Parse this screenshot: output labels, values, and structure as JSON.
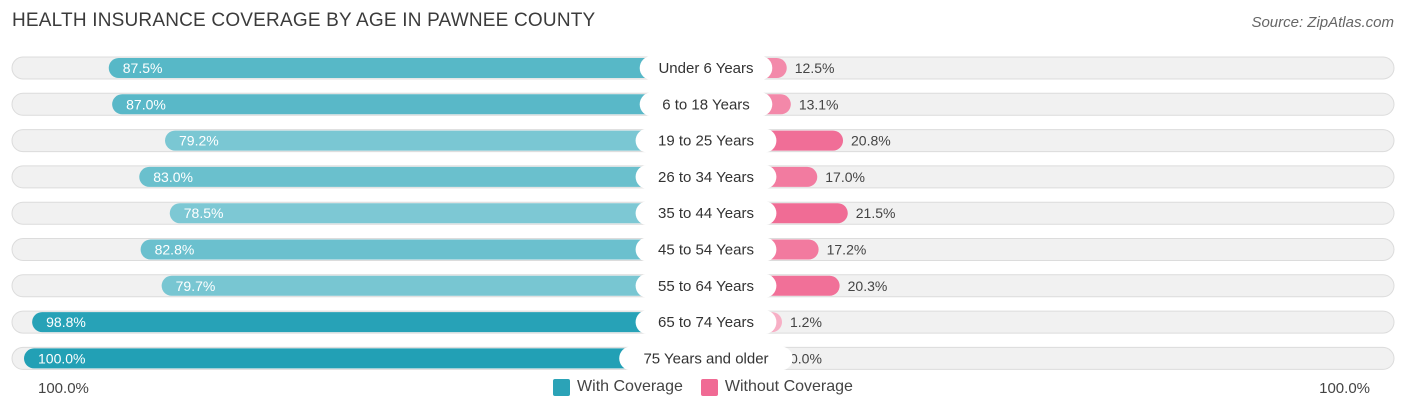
{
  "title": "HEALTH INSURANCE COVERAGE BY AGE IN PAWNEE COUNTY",
  "source": "Source: ZipAtlas.com",
  "axis": {
    "left_label": "100.0%",
    "right_label": "100.0%"
  },
  "legend": [
    {
      "label": "With Coverage",
      "color": "#2ba3b7"
    },
    {
      "label": "Without Coverage",
      "color": "#f06a94"
    }
  ],
  "chart_data": {
    "type": "bar",
    "orientation": "horizontal-diverging",
    "title": "HEALTH INSURANCE COVERAGE BY AGE IN PAWNEE COUNTY",
    "categories": [
      "Under 6 Years",
      "6 to 18 Years",
      "19 to 25 Years",
      "26 to 34 Years",
      "35 to 44 Years",
      "45 to 54 Years",
      "55 to 64 Years",
      "65 to 74 Years",
      "75 Years and older"
    ],
    "series": [
      {
        "name": "With Coverage",
        "values": [
          87.5,
          87.0,
          79.2,
          83.0,
          78.5,
          82.8,
          79.7,
          98.8,
          100.0
        ],
        "labels": [
          "87.5%",
          "87.0%",
          "79.2%",
          "83.0%",
          "78.5%",
          "82.8%",
          "79.7%",
          "98.8%",
          "100.0%"
        ]
      },
      {
        "name": "Without Coverage",
        "values": [
          12.5,
          13.1,
          20.8,
          17.0,
          21.5,
          17.2,
          20.3,
          1.2,
          0.0
        ],
        "labels": [
          "12.5%",
          "13.1%",
          "20.8%",
          "17.0%",
          "21.5%",
          "17.2%",
          "20.3%",
          "1.2%",
          "0.0%"
        ]
      }
    ],
    "xlim": [
      0,
      100
    ],
    "grid": false,
    "legend_position": "bottom-center"
  }
}
